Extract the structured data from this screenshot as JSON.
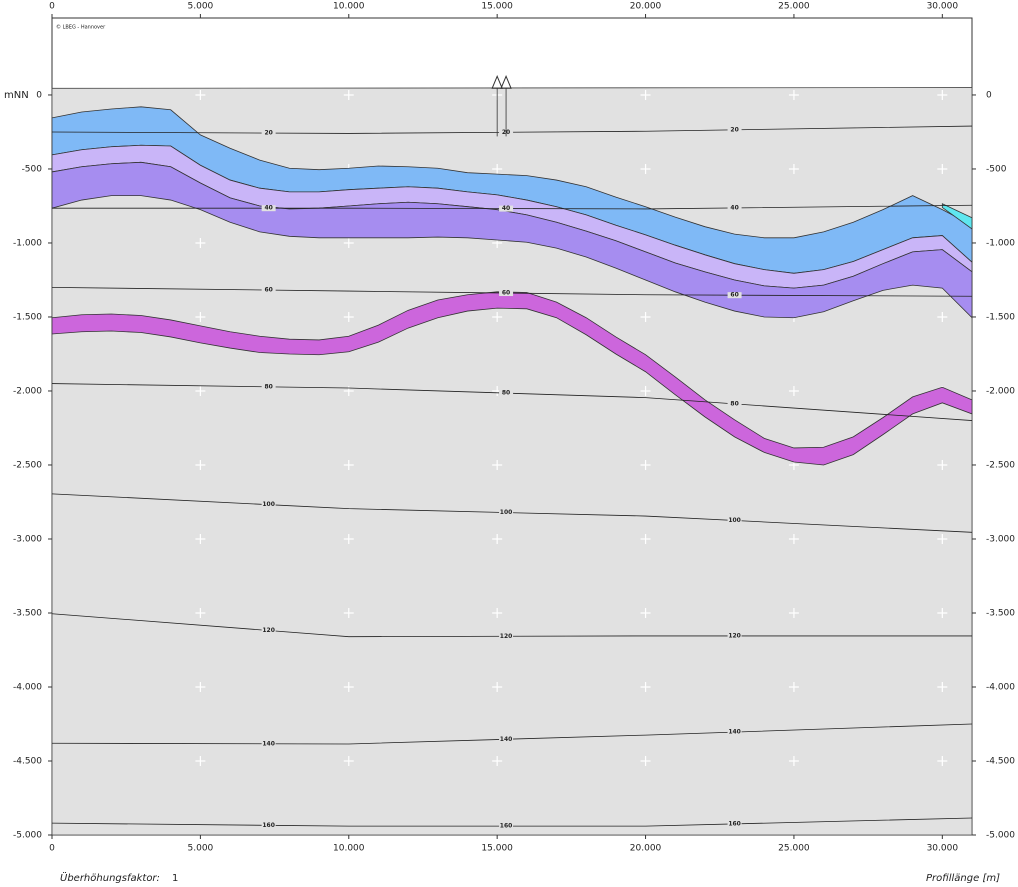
{
  "chart_data": {
    "type": "cross-section",
    "credit": "© LBEG - Hannover",
    "x_label": "Profillänge [m]",
    "y_label": "mNN",
    "exaggeration_label": "Überhöhungsfaktor:",
    "exaggeration": 1,
    "xlim": [
      0,
      31000
    ],
    "ylim": [
      -5000,
      520
    ],
    "xticks": [
      0,
      {
        "value": 5000,
        "label": "5.000"
      },
      {
        "value": 10000,
        "label": "10.000"
      },
      {
        "value": 15000,
        "label": "15.000"
      },
      {
        "value": 20000,
        "label": "20.000"
      },
      {
        "value": 25000,
        "label": "25.000"
      },
      {
        "value": 30000,
        "label": "30.000"
      }
    ],
    "yticks": [
      0,
      -500,
      {
        "value": -1000,
        "label": "-1.000"
      },
      {
        "value": -1500,
        "label": "-1.500"
      },
      {
        "value": -2000,
        "label": "-2.000"
      },
      {
        "value": -2500,
        "label": "-2.500"
      },
      {
        "value": -3000,
        "label": "-3.000"
      },
      {
        "value": -3500,
        "label": "-3.500"
      },
      {
        "value": -4000,
        "label": "-4.000"
      },
      {
        "value": -4500,
        "label": "-4.500"
      },
      {
        "value": -5000,
        "label": "-5.000"
      }
    ],
    "grid": "cross",
    "surface": {
      "x": [
        0,
        31000
      ],
      "values": [
        45,
        50
      ],
      "color": "#e1e1e1"
    },
    "wells": [
      {
        "x": 15000,
        "depth": -280
      },
      {
        "x": 15300,
        "depth": -280
      }
    ],
    "x": [
      0,
      1000,
      2000,
      3000,
      4000,
      5000,
      6000,
      7000,
      8000,
      9000,
      10000,
      11000,
      12000,
      13000,
      14000,
      15000,
      16000,
      17000,
      18000,
      19000,
      20000,
      21000,
      22000,
      23000,
      24000,
      25000,
      26000,
      27000,
      28000,
      29000,
      30000,
      31000
    ],
    "layers": [
      {
        "color": "#7fb9f6",
        "top": [
          -155,
          -115,
          -95,
          -80,
          -100,
          -270,
          -360,
          -440,
          -495,
          -505,
          -495,
          -480,
          -485,
          -495,
          -525,
          -535,
          -545,
          -575,
          -620,
          -690,
          -755,
          -825,
          -890,
          -940,
          -965,
          -965,
          -925,
          -860,
          -775,
          -680,
          -775,
          -880
        ],
        "base": [
          -405,
          -370,
          -350,
          -340,
          -345,
          -475,
          -575,
          -630,
          -655,
          -655,
          -640,
          -630,
          -620,
          -630,
          -655,
          -675,
          -710,
          -755,
          -810,
          -880,
          -945,
          -1015,
          -1080,
          -1140,
          -1180,
          -1205,
          -1180,
          -1125,
          -1045,
          -965,
          -950,
          -1130
        ]
      },
      {
        "color": "#c9b5f8",
        "top": [
          -405,
          -370,
          -350,
          -340,
          -345,
          -475,
          -575,
          -630,
          -655,
          -655,
          -640,
          -630,
          -620,
          -630,
          -655,
          -675,
          -710,
          -755,
          -810,
          -880,
          -945,
          -1015,
          -1080,
          -1140,
          -1180,
          -1205,
          -1180,
          -1125,
          -1045,
          -965,
          -950,
          -1130
        ],
        "base": [
          -520,
          -485,
          -465,
          -455,
          -485,
          -595,
          -695,
          -750,
          -770,
          -765,
          -750,
          -735,
          -725,
          -735,
          -755,
          -775,
          -810,
          -860,
          -920,
          -985,
          -1060,
          -1135,
          -1195,
          -1250,
          -1290,
          -1305,
          -1285,
          -1225,
          -1140,
          -1060,
          -1045,
          -1195
        ]
      },
      {
        "color": "#a68df0",
        "top": [
          -520,
          -485,
          -465,
          -455,
          -485,
          -595,
          -695,
          -750,
          -770,
          -765,
          -750,
          -735,
          -725,
          -735,
          -755,
          -775,
          -810,
          -860,
          -920,
          -985,
          -1060,
          -1135,
          -1195,
          -1250,
          -1290,
          -1305,
          -1285,
          -1225,
          -1140,
          -1060,
          -1045,
          -1195
        ],
        "base": [
          -765,
          -710,
          -680,
          -680,
          -710,
          -775,
          -860,
          -925,
          -955,
          -965,
          -965,
          -965,
          -965,
          -960,
          -965,
          -980,
          -995,
          -1035,
          -1095,
          -1170,
          -1250,
          -1330,
          -1400,
          -1460,
          -1500,
          -1505,
          -1465,
          -1390,
          -1320,
          -1285,
          -1305,
          -1505
        ]
      },
      {
        "color": "#cc66dc",
        "top": [
          -1505,
          -1485,
          -1480,
          -1490,
          -1520,
          -1560,
          -1600,
          -1630,
          -1650,
          -1655,
          -1630,
          -1555,
          -1455,
          -1385,
          -1350,
          -1330,
          -1335,
          -1400,
          -1505,
          -1635,
          -1755,
          -1905,
          -2060,
          -2195,
          -2320,
          -2385,
          -2380,
          -2310,
          -2180,
          -2040,
          -1975,
          -2060
        ],
        "base": [
          -1615,
          -1600,
          -1595,
          -1605,
          -1635,
          -1675,
          -1710,
          -1740,
          -1750,
          -1755,
          -1735,
          -1670,
          -1575,
          -1505,
          -1460,
          -1440,
          -1445,
          -1505,
          -1620,
          -1750,
          -1870,
          -2025,
          -2175,
          -2310,
          -2415,
          -2480,
          -2500,
          -2430,
          -2295,
          -2155,
          -2080,
          -2155
        ]
      },
      {
        "color": "#5fe6ef",
        "top": [
          null,
          null,
          null,
          null,
          null,
          null,
          null,
          null,
          null,
          null,
          null,
          null,
          null,
          null,
          null,
          null,
          null,
          null,
          null,
          null,
          null,
          null,
          null,
          null,
          null,
          null,
          null,
          null,
          null,
          null,
          -735,
          -830
        ],
        "base": [
          null,
          null,
          null,
          null,
          null,
          null,
          null,
          null,
          null,
          null,
          null,
          null,
          null,
          null,
          null,
          null,
          null,
          null,
          null,
          null,
          null,
          null,
          null,
          null,
          null,
          null,
          null,
          null,
          null,
          null,
          -760,
          -905
        ]
      }
    ],
    "isotherm_x": [
      0,
      10000,
      20000,
      31000
    ],
    "isotherms": [
      {
        "value": 20,
        "depths": [
          -250,
          -260,
          -245,
          -210
        ]
      },
      {
        "value": 40,
        "depths": [
          -765,
          -765,
          -770,
          -745
        ]
      },
      {
        "value": 60,
        "depths": [
          -1300,
          -1325,
          -1350,
          -1360
        ]
      },
      {
        "value": 80,
        "depths": [
          -1950,
          -1980,
          -2045,
          -2200
        ]
      },
      {
        "value": 100,
        "depths": [
          -2695,
          -2795,
          -2845,
          -2955
        ]
      },
      {
        "value": 120,
        "depths": [
          -3505,
          -3660,
          -3655,
          -3655
        ]
      },
      {
        "value": 140,
        "depths": [
          -4380,
          -4385,
          -4325,
          -4250
        ]
      },
      {
        "value": 160,
        "depths": [
          -4920,
          -4940,
          -4940,
          -4885
        ]
      }
    ]
  }
}
